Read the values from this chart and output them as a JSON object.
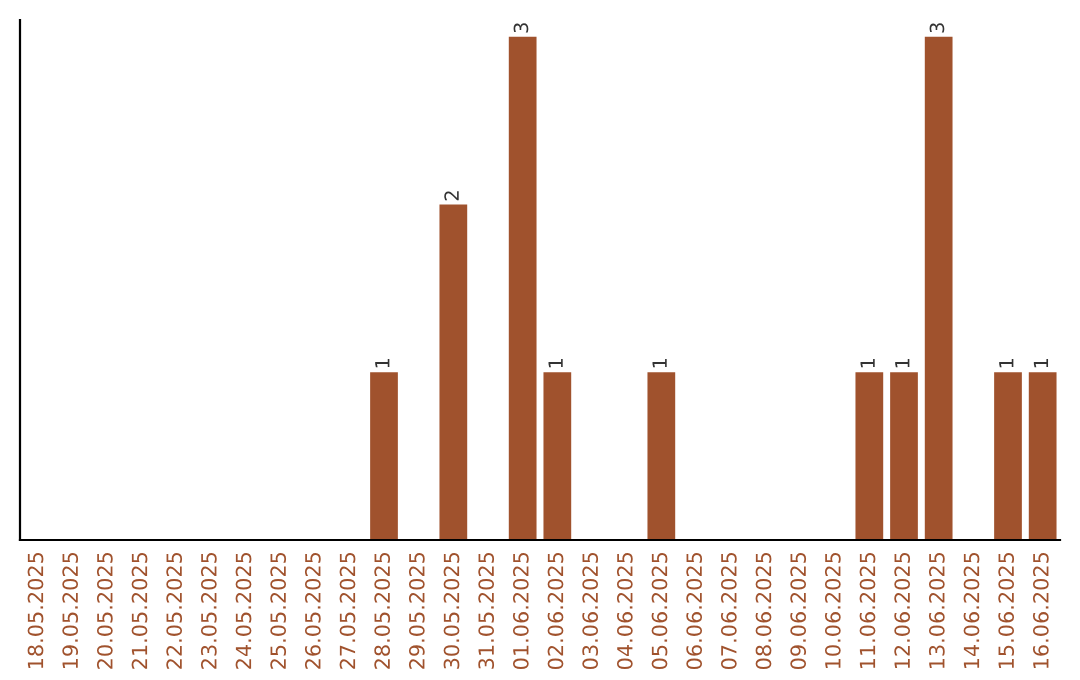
{
  "chart_data": {
    "type": "bar",
    "categories": [
      "18.05.2025",
      "19.05.2025",
      "20.05.2025",
      "21.05.2025",
      "22.05.2025",
      "23.05.2025",
      "24.05.2025",
      "25.05.2025",
      "26.05.2025",
      "27.05.2025",
      "28.05.2025",
      "29.05.2025",
      "30.05.2025",
      "31.05.2025",
      "01.06.2025",
      "02.06.2025",
      "03.06.2025",
      "04.06.2025",
      "05.06.2025",
      "06.06.2025",
      "07.06.2025",
      "08.06.2025",
      "09.06.2025",
      "10.06.2025",
      "11.06.2025",
      "12.06.2025",
      "13.06.2025",
      "14.06.2025",
      "15.06.2025",
      "16.06.2025"
    ],
    "values": [
      0,
      0,
      0,
      0,
      0,
      0,
      0,
      0,
      0,
      0,
      1,
      0,
      2,
      0,
      3,
      1,
      0,
      0,
      1,
      0,
      0,
      0,
      0,
      0,
      1,
      1,
      3,
      0,
      1,
      1
    ],
    "value_labels": [
      null,
      null,
      null,
      null,
      null,
      null,
      null,
      null,
      null,
      null,
      "1",
      null,
      "2",
      null,
      "3",
      "1",
      null,
      null,
      "1",
      null,
      null,
      null,
      null,
      null,
      "1",
      "1",
      "3",
      null,
      "1",
      "1"
    ],
    "color": "#a0522d",
    "ylim": [
      0,
      3.1
    ],
    "tick_labels": "x",
    "grid": false,
    "legend": false
  }
}
